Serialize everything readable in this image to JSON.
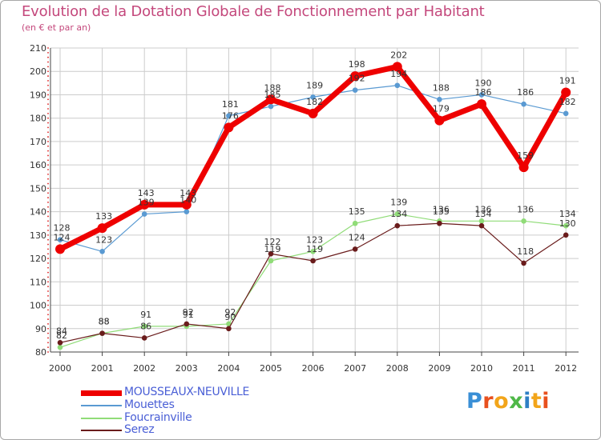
{
  "title": "Evolution de la Dotation Globale de Fonctionnement par Habitant",
  "subtitle": "(en € et par an)",
  "logo": {
    "text": "Proxiti"
  },
  "colors": {
    "accent": "#c4487c",
    "legend_text": "#4a5fd6"
  },
  "chart_data": {
    "type": "line",
    "title": "Evolution de la Dotation Globale de Fonctionnement par Habitant",
    "subtitle": "(en € et par an)",
    "xlabel": "",
    "ylabel": "",
    "x": [
      "2000",
      "2001",
      "2002",
      "2003",
      "2004",
      "2005",
      "2006",
      "2007",
      "2008",
      "2009",
      "2010",
      "2011",
      "2012"
    ],
    "ylim": [
      80,
      210
    ],
    "yticks": [
      "80",
      "90",
      "100",
      "110",
      "120",
      "130",
      "140",
      "150",
      "160",
      "170",
      "180",
      "190",
      "200",
      "210"
    ],
    "grid": true,
    "legend_position": "bottom-left",
    "series": [
      {
        "name": "MOUSSEAUX-NEUVILLE",
        "color": "#ee0000",
        "values": [
          124,
          133,
          143,
          143,
          176,
          188,
          182,
          198,
          202,
          179,
          186,
          159,
          191
        ]
      },
      {
        "name": "Mouettes",
        "color": "#5a9ad2",
        "values": [
          128,
          123,
          139,
          140,
          181,
          185,
          189,
          192,
          194,
          188,
          190,
          186,
          182
        ]
      },
      {
        "name": "Foucrainville",
        "color": "#90dc78",
        "values": [
          82,
          88,
          91,
          91,
          92,
          119,
          123,
          135,
          139,
          136,
          136,
          136,
          134
        ]
      },
      {
        "name": "Serez",
        "color": "#6a1c1c",
        "values": [
          84,
          88,
          86,
          92,
          90,
          122,
          119,
          124,
          134,
          135,
          134,
          118,
          130
        ]
      }
    ]
  }
}
